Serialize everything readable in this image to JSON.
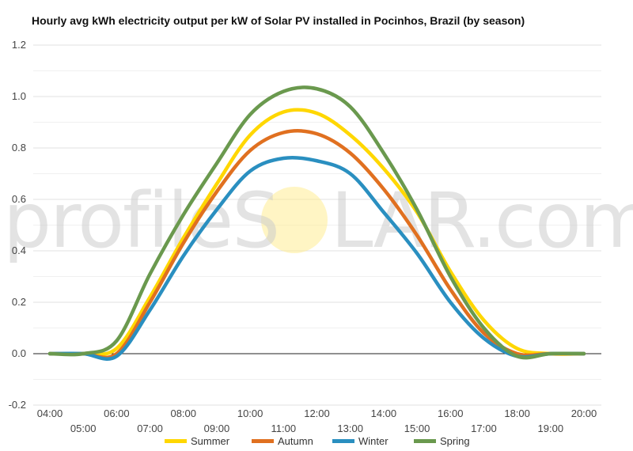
{
  "chart_data": {
    "type": "line",
    "title": "Hourly avg kWh electricity output per kW of Solar PV installed in Pocinhos, Brazil (by season)",
    "xlabel": "",
    "ylabel": "",
    "x": [
      "04:00",
      "05:00",
      "06:00",
      "07:00",
      "08:00",
      "09:00",
      "10:00",
      "11:00",
      "12:00",
      "13:00",
      "14:00",
      "15:00",
      "16:00",
      "17:00",
      "18:00",
      "19:00",
      "20:00"
    ],
    "ylim": [
      -0.2,
      1.2
    ],
    "yticks": [
      "-0.2",
      "0.0",
      "0.2",
      "0.4",
      "0.6",
      "0.8",
      "1.0",
      "1.2"
    ],
    "grid": true,
    "legend": "bottom",
    "series": [
      {
        "name": "Summer",
        "color": "#FFD700",
        "values": [
          0.0,
          0.0,
          0.02,
          0.22,
          0.45,
          0.66,
          0.85,
          0.94,
          0.935,
          0.85,
          0.72,
          0.55,
          0.32,
          0.13,
          0.02,
          0.0,
          0.0
        ]
      },
      {
        "name": "Autumn",
        "color": "#E07020",
        "values": [
          0.0,
          0.0,
          0.0,
          0.2,
          0.43,
          0.63,
          0.79,
          0.86,
          0.855,
          0.78,
          0.64,
          0.46,
          0.25,
          0.08,
          0.0,
          0.0,
          0.0
        ]
      },
      {
        "name": "Winter",
        "color": "#2A8FC0",
        "values": [
          0.0,
          0.0,
          -0.01,
          0.17,
          0.38,
          0.56,
          0.71,
          0.76,
          0.75,
          0.7,
          0.55,
          0.39,
          0.2,
          0.06,
          -0.01,
          0.0,
          0.0
        ]
      },
      {
        "name": "Spring",
        "color": "#6A994E",
        "values": [
          0.0,
          0.0,
          0.05,
          0.31,
          0.54,
          0.74,
          0.93,
          1.02,
          1.03,
          0.96,
          0.78,
          0.56,
          0.3,
          0.1,
          -0.01,
          0.0,
          0.0
        ]
      }
    ]
  },
  "watermark": {
    "left": "profileS",
    "right": "LAR.com",
    "sun_color": "#FFEB8A"
  }
}
